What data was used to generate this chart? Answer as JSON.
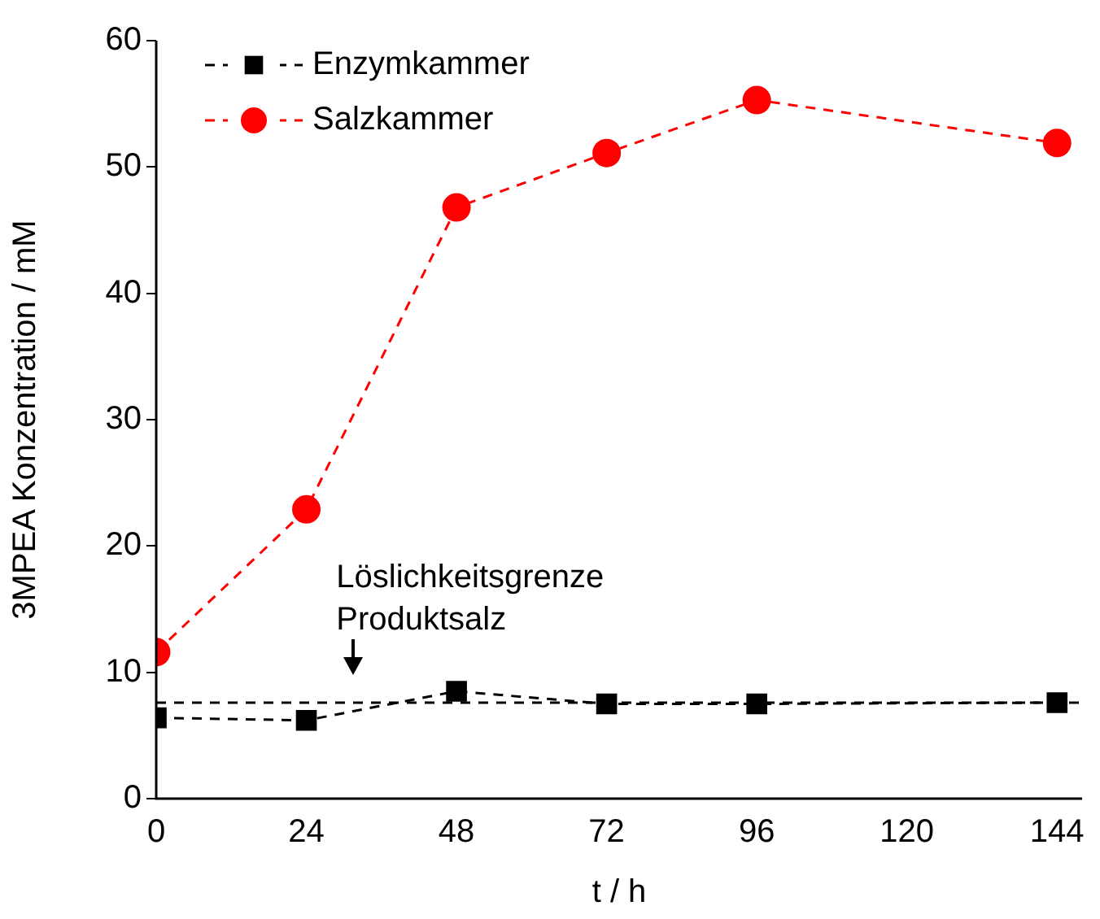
{
  "chart_data": {
    "type": "line",
    "xlabel": "t / h",
    "ylabel": "3MPEA Konzentration / mM",
    "x": [
      0,
      24,
      48,
      72,
      96,
      144
    ],
    "series": [
      {
        "name": "Enzymkammer",
        "color": "#000000",
        "marker": "square",
        "values": [
          6.4,
          6.2,
          8.5,
          7.5,
          7.5,
          7.6
        ]
      },
      {
        "name": "Salzkammer",
        "color": "#ff0000",
        "marker": "circle",
        "values": [
          11.6,
          22.9,
          46.8,
          51.1,
          55.3,
          51.9
        ]
      }
    ],
    "xlim": [
      0,
      148
    ],
    "xticks": [
      0,
      24,
      48,
      72,
      96,
      120,
      144
    ],
    "ylim": [
      0,
      60
    ],
    "yticks": [
      0,
      10,
      20,
      30,
      40,
      50,
      60
    ],
    "ref_lines": [
      {
        "axis": "y",
        "value": 7.6,
        "color": "#000000",
        "line_style": "dashed"
      }
    ],
    "annotations": [
      "Löslichkeitsgrenze\nProduktsalz"
    ],
    "grid": false,
    "legend": "top left",
    "line_style": "dashed"
  }
}
